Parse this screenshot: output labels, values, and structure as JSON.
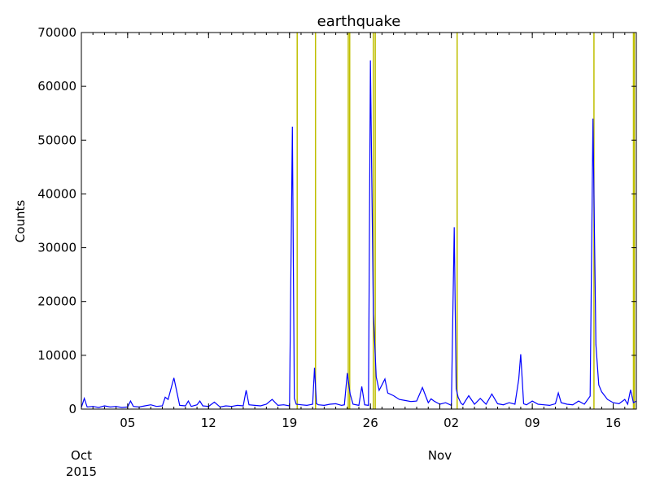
{
  "chart_data": {
    "type": "line",
    "title": "earthquake",
    "xlabel": "",
    "ylabel": "Counts",
    "ylim": [
      0,
      70000
    ],
    "xlim": [
      "2015-10-01",
      "2015-11-18"
    ],
    "y_ticks": [
      0,
      10000,
      20000,
      30000,
      40000,
      50000,
      60000,
      70000
    ],
    "y_tick_labels": [
      "0",
      "10000",
      "20000",
      "30000",
      "40000",
      "50000",
      "60000",
      "70000"
    ],
    "x_ticks": [
      {
        "date": "2015-10-05",
        "label": "05"
      },
      {
        "date": "2015-10-12",
        "label": "12"
      },
      {
        "date": "2015-10-19",
        "label": "19"
      },
      {
        "date": "2015-10-26",
        "label": "26"
      },
      {
        "date": "2015-11-02",
        "label": "02"
      },
      {
        "date": "2015-11-09",
        "label": "09"
      },
      {
        "date": "2015-11-16",
        "label": "16"
      }
    ],
    "month_labels": [
      {
        "date": "2015-10-01",
        "label": "Oct",
        "year": "2015"
      },
      {
        "date": "2015-11-01",
        "label": "Nov",
        "year": ""
      }
    ],
    "grid": false,
    "series": [
      {
        "color": "#0000ff",
        "x": [
          "2015-10-01T00",
          "2015-10-01T06",
          "2015-10-01T12",
          "2015-10-02T00",
          "2015-10-02T12",
          "2015-10-03T00",
          "2015-10-03T12",
          "2015-10-04T00",
          "2015-10-04T12",
          "2015-10-05T00",
          "2015-10-05T06",
          "2015-10-05T12",
          "2015-10-06T00",
          "2015-10-06T12",
          "2015-10-07T00",
          "2015-10-07T12",
          "2015-10-08T00",
          "2015-10-08T06",
          "2015-10-08T12",
          "2015-10-09T00",
          "2015-10-09T12",
          "2015-10-10T00",
          "2015-10-10T06",
          "2015-10-10T12",
          "2015-10-11T00",
          "2015-10-11T06",
          "2015-10-11T12",
          "2015-10-12T00",
          "2015-10-12T12",
          "2015-10-13T00",
          "2015-10-13T12",
          "2015-10-14T00",
          "2015-10-14T12",
          "2015-10-15T00",
          "2015-10-15T06",
          "2015-10-15T12",
          "2015-10-16T00",
          "2015-10-16T12",
          "2015-10-17T00",
          "2015-10-17T12",
          "2015-10-18T00",
          "2015-10-18T12",
          "2015-10-19T00",
          "2015-10-19T06",
          "2015-10-19T10",
          "2015-10-19T14",
          "2015-10-20T00",
          "2015-10-20T12",
          "2015-10-21T00",
          "2015-10-21T04",
          "2015-10-21T08",
          "2015-10-21T12",
          "2015-10-22T00",
          "2015-10-22T12",
          "2015-10-23T00",
          "2015-10-23T12",
          "2015-10-23T18",
          "2015-10-24T00",
          "2015-10-24T06",
          "2015-10-24T12",
          "2015-10-25T00",
          "2015-10-25T06",
          "2015-10-25T12",
          "2015-10-25T20",
          "2015-10-26T00",
          "2015-10-26T06",
          "2015-10-26T12",
          "2015-10-26T18",
          "2015-10-27T00",
          "2015-10-27T06",
          "2015-10-27T12",
          "2015-10-28T00",
          "2015-10-28T12",
          "2015-10-29T00",
          "2015-10-29T12",
          "2015-10-30T00",
          "2015-10-30T12",
          "2015-10-31T00",
          "2015-10-31T06",
          "2015-10-31T12",
          "2015-11-01T00",
          "2015-11-01T12",
          "2015-11-02T00",
          "2015-11-02T06",
          "2015-11-02T10",
          "2015-11-02T14",
          "2015-11-02T20",
          "2015-11-03T00",
          "2015-11-03T12",
          "2015-11-04T00",
          "2015-11-04T12",
          "2015-11-05T00",
          "2015-11-05T12",
          "2015-11-06T00",
          "2015-11-06T12",
          "2015-11-07T00",
          "2015-11-07T12",
          "2015-11-07T20",
          "2015-11-08T00",
          "2015-11-08T06",
          "2015-11-08T12",
          "2015-11-09T00",
          "2015-11-09T12",
          "2015-11-10T00",
          "2015-11-10T12",
          "2015-11-11T00",
          "2015-11-11T06",
          "2015-11-11T12",
          "2015-11-12T00",
          "2015-11-12T12",
          "2015-11-13T00",
          "2015-11-13T12",
          "2015-11-14T00",
          "2015-11-14T06",
          "2015-11-14T12",
          "2015-11-14T18",
          "2015-11-15T00",
          "2015-11-15T12",
          "2015-11-16T00",
          "2015-11-16T12",
          "2015-11-17T00",
          "2015-11-17T06",
          "2015-11-17T12",
          "2015-11-17T18",
          "2015-11-18T00"
        ],
        "y": [
          300,
          2000,
          400,
          500,
          300,
          600,
          400,
          500,
          300,
          400,
          1500,
          500,
          400,
          600,
          800,
          500,
          600,
          2200,
          1800,
          5800,
          700,
          600,
          1500,
          500,
          800,
          1500,
          600,
          500,
          1300,
          400,
          600,
          500,
          700,
          600,
          3500,
          800,
          700,
          600,
          900,
          1800,
          700,
          800,
          600,
          52500,
          2000,
          900,
          800,
          700,
          900,
          7700,
          1000,
          800,
          700,
          900,
          1000,
          700,
          800,
          6700,
          2800,
          900,
          700,
          4200,
          800,
          700,
          64800,
          18000,
          6000,
          3500,
          4500,
          5600,
          3000,
          2500,
          1800,
          1600,
          1400,
          1500,
          4000,
          1200,
          1900,
          1500,
          900,
          1200,
          700,
          33800,
          3800,
          2200,
          1100,
          800,
          2500,
          900,
          2000,
          900,
          2800,
          1000,
          800,
          1200,
          900,
          5600,
          10200,
          1000,
          800,
          1500,
          900,
          800,
          700,
          1000,
          3000,
          1200,
          900,
          800,
          1500,
          900,
          2400,
          54000,
          12000,
          4500,
          3200,
          1800,
          1200,
          1000,
          1800,
          900,
          3600,
          1200,
          1500
        ]
      }
    ],
    "event_markers": {
      "color": "#bfbf00",
      "x": [
        "2015-10-19T16",
        "2015-10-21T06",
        "2015-10-24T02",
        "2015-10-24T05",
        "2015-10-26T06",
        "2015-10-26T10",
        "2015-11-02T12",
        "2015-11-14T08",
        "2015-11-17T18",
        "2015-11-17T20"
      ]
    }
  }
}
